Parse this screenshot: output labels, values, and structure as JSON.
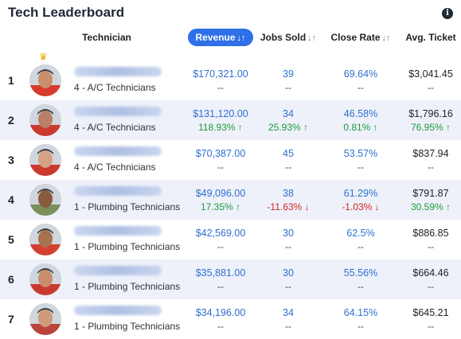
{
  "title": "Tech Leaderboard",
  "info_icon": "i",
  "columns": {
    "technician": "Technician",
    "revenue": "Revenue",
    "jobs_sold": "Jobs Sold",
    "close_rate": "Close Rate",
    "avg_ticket": "Avg. Ticket",
    "sort_glyph": "↓↑"
  },
  "rows": [
    {
      "rank": "1",
      "team": "4 - A/C Technicians",
      "revenue": "$170,321.00",
      "revenue_change": "--",
      "jobs": "39",
      "jobs_change": "--",
      "close": "69.64%",
      "close_change": "--",
      "avg": "$3,041.45",
      "avg_change": "--"
    },
    {
      "rank": "2",
      "team": "4 - A/C Technicians",
      "revenue": "$131,120.00",
      "revenue_change": "118.93% ↑",
      "jobs": "34",
      "jobs_change": "25.93% ↑",
      "close": "46.58%",
      "close_change": "0.81% ↑",
      "avg": "$1,796.16",
      "avg_change": "76.95% ↑"
    },
    {
      "rank": "3",
      "team": "4 - A/C Technicians",
      "revenue": "$70,387.00",
      "revenue_change": "--",
      "jobs": "45",
      "jobs_change": "--",
      "close": "53.57%",
      "close_change": "--",
      "avg": "$837.94",
      "avg_change": "--"
    },
    {
      "rank": "4",
      "team": "1 - Plumbing Technicians",
      "revenue": "$49,096.00",
      "revenue_change": "17.35% ↑",
      "jobs": "38",
      "jobs_change": "-11.63% ↓",
      "close": "61.29%",
      "close_change": "-1.03% ↓",
      "avg": "$791.87",
      "avg_change": "30.59% ↑"
    },
    {
      "rank": "5",
      "team": "1 - Plumbing Technicians",
      "revenue": "$42,569.00",
      "revenue_change": "--",
      "jobs": "30",
      "jobs_change": "--",
      "close": "62.5%",
      "close_change": "--",
      "avg": "$886.85",
      "avg_change": "--"
    },
    {
      "rank": "6",
      "team": "1 - Plumbing Technicians",
      "revenue": "$35,881.00",
      "revenue_change": "--",
      "jobs": "30",
      "jobs_change": "--",
      "close": "55.56%",
      "close_change": "--",
      "avg": "$664.46",
      "avg_change": "--"
    },
    {
      "rank": "7",
      "team": "1 - Plumbing Technicians",
      "revenue": "$34,196.00",
      "revenue_change": "--",
      "jobs": "34",
      "jobs_change": "--",
      "close": "64.15%",
      "close_change": "--",
      "avg": "$645.21",
      "avg_change": "--"
    }
  ],
  "colors": {
    "accent": "#2f6fe8",
    "positive": "#1e9b3b",
    "negative": "#d32626",
    "row_alt": "#eef1fa"
  },
  "icons": {
    "info": "info-icon",
    "crown": "crown-icon",
    "sort": "sort-arrows-icon"
  }
}
